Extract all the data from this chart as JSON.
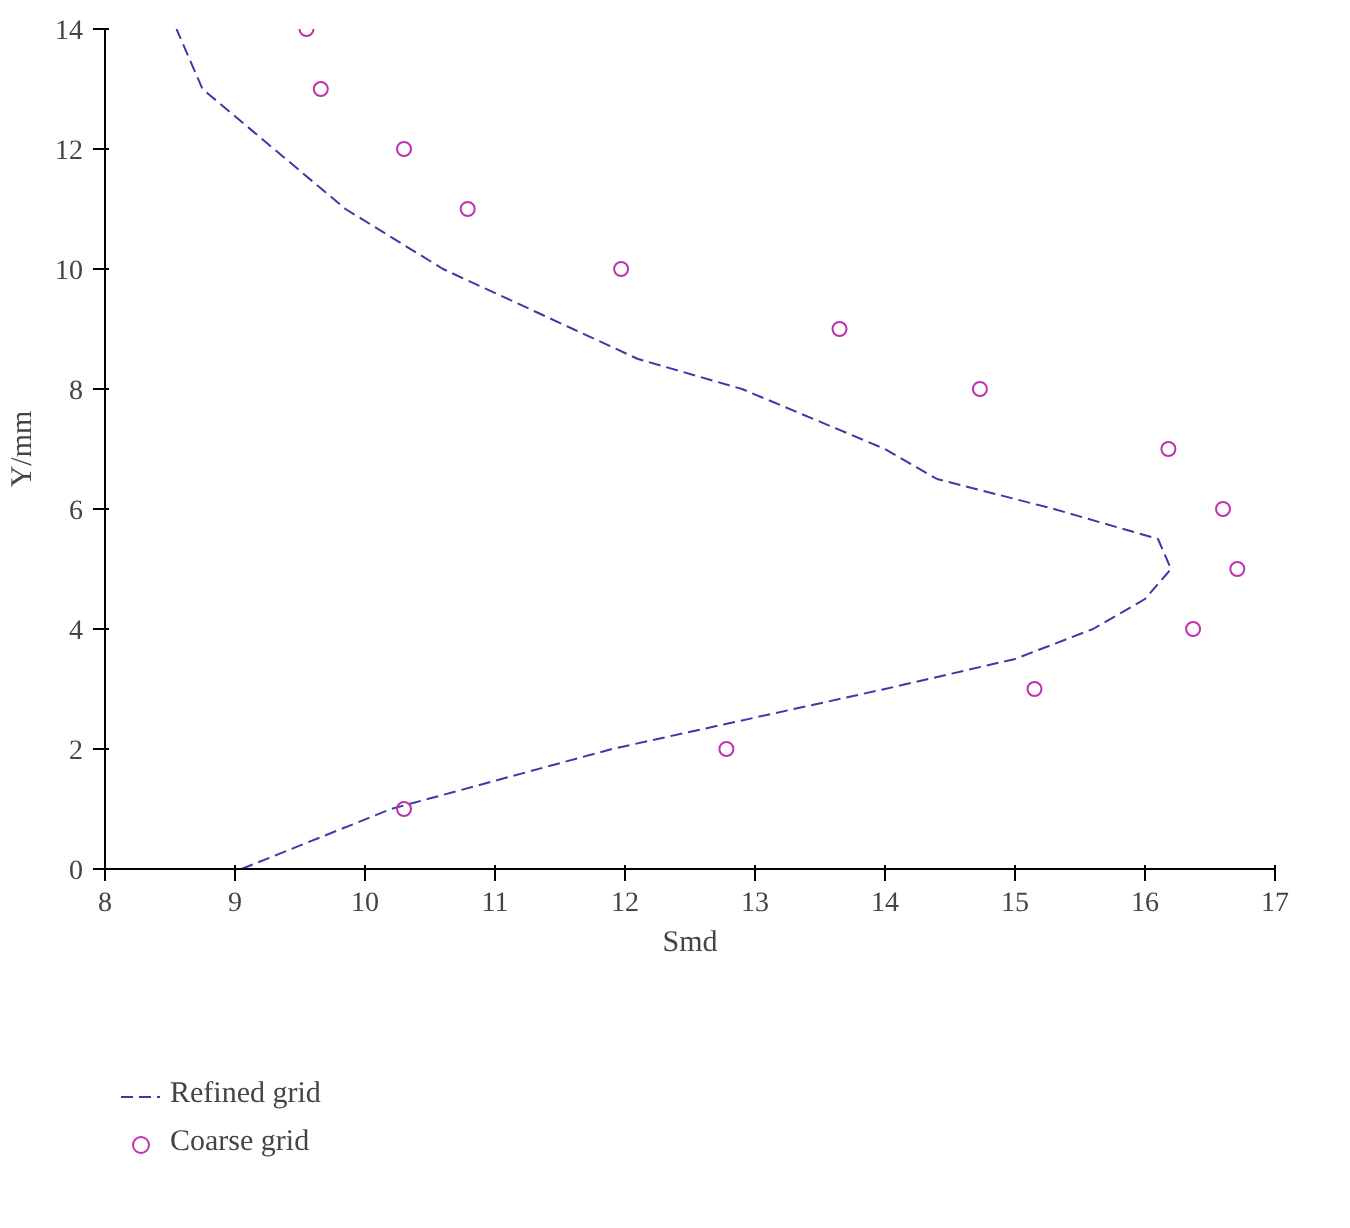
{
  "chart_data": {
    "type": "scatter",
    "xlabel": "Smd",
    "ylabel": "Y/mm",
    "xlim": [
      8,
      17
    ],
    "ylim": [
      0,
      14
    ],
    "xticks": [
      8,
      9,
      10,
      11,
      12,
      13,
      14,
      15,
      16,
      17
    ],
    "yticks": [
      0,
      2,
      4,
      6,
      8,
      10,
      12,
      14
    ],
    "grid": false,
    "legend": "bottom",
    "series": [
      {
        "name": "Refined grid",
        "type": "line",
        "line_style": "dashed",
        "marker": "none",
        "color": "#3a3aa8",
        "x": [
          9.05,
          10.2,
          11.9,
          14.0,
          15.0,
          15.6,
          16.0,
          16.2,
          16.1,
          15.3,
          14.4,
          14.0,
          12.9,
          12.1,
          11.6,
          10.6,
          9.85,
          9.3,
          8.75,
          8.55
        ],
        "values": [
          0,
          1,
          2,
          3,
          3.5,
          4,
          4.5,
          5,
          5.5,
          6,
          6.5,
          7,
          8,
          8.5,
          9,
          10,
          11,
          12,
          13,
          14
        ]
      },
      {
        "name": "Coarse grid",
        "marker": "circle",
        "color": "#c030b0",
        "x": [
          9.55,
          9.66,
          10.3,
          10.79,
          11.97,
          13.65,
          14.73,
          16.18,
          16.6,
          16.71,
          16.37,
          15.15,
          12.78,
          10.3
        ],
        "values": [
          14,
          13,
          12,
          11,
          10,
          9,
          8,
          7,
          6,
          5,
          4,
          3,
          2,
          1
        ]
      }
    ]
  }
}
